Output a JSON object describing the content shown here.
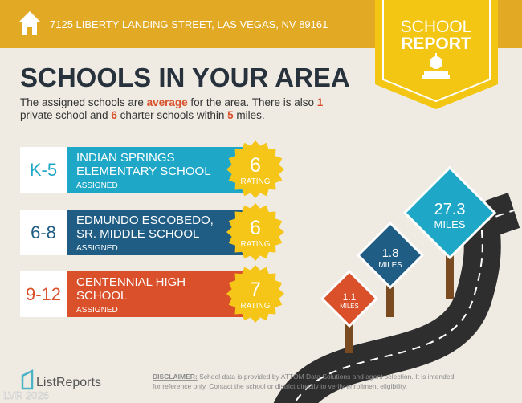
{
  "header": {
    "address": "7125 LIBERTY LANDING STREET, LAS VEGAS, NV 89161"
  },
  "badge": {
    "line1": "SCHOOL",
    "line2": "REPORT"
  },
  "title": "SCHOOLS IN YOUR AREA",
  "intro": [
    "The assigned schools are ",
    "average",
    " for the area. There is also ",
    "1",
    "private school and ",
    "6",
    " charter schools within ",
    "5",
    " miles."
  ],
  "schools": [
    {
      "grade": "K-5",
      "name": [
        "INDIAN SPRINGS",
        "ELEMENTARY SCHOOL"
      ],
      "status": "ASSIGNED",
      "rating": 6,
      "rating_label": "RATING"
    },
    {
      "grade": "6-8",
      "name": [
        "EDMUNDO ESCOBEDO,",
        "SR. MIDDLE SCHOOL"
      ],
      "status": "ASSIGNED",
      "rating": 6,
      "rating_label": "RATING"
    },
    {
      "grade": "9-12",
      "name": [
        "CENTENNIAL HIGH",
        "SCHOOL"
      ],
      "status": "ASSIGNED",
      "rating": 7,
      "rating_label": "RATING"
    }
  ],
  "distances": [
    {
      "value": 1.1,
      "unit": "MILES"
    },
    {
      "value": 1.8,
      "unit": "MILES"
    },
    {
      "value": 27.3,
      "unit": "MILES"
    }
  ],
  "footer": {
    "brand": "ListReports",
    "disclaimer_label": "DISCLAIMER:",
    "disclaimer": [
      " School data is provided by ATTOM Data Solutions and agent selection. It is intended",
      "for reference only. Contact the school or district directly to verify enrollment eligibility."
    ],
    "watermark": "LVR 2026"
  }
}
